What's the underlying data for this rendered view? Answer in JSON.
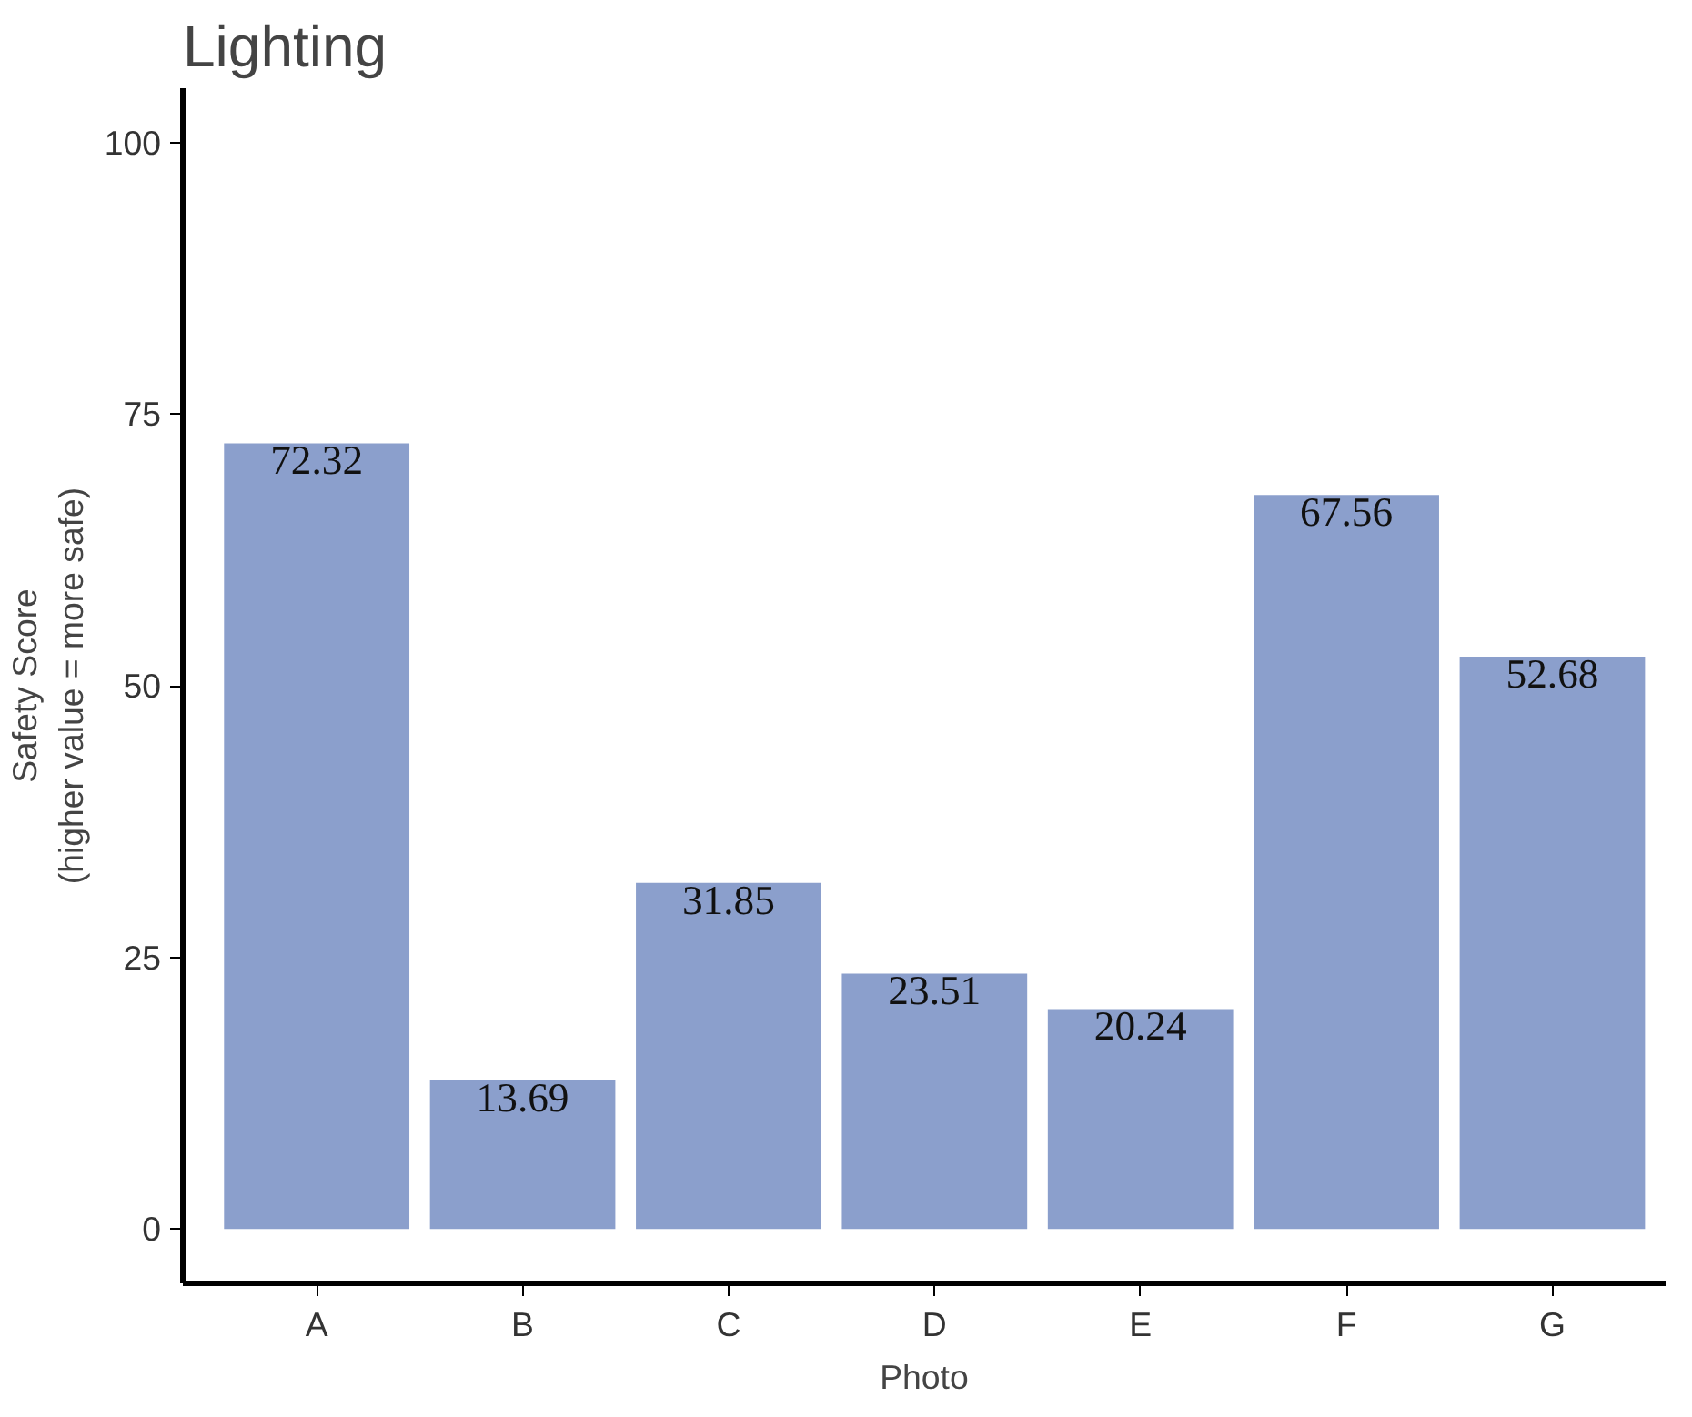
{
  "chart_data": {
    "type": "bar",
    "title": "Lighting",
    "xlabel": "Photo",
    "ylabel": "Safety Score\n(higher value = more safe)",
    "categories": [
      "A",
      "B",
      "C",
      "D",
      "E",
      "F",
      "G"
    ],
    "values": [
      72.32,
      13.69,
      31.85,
      23.51,
      20.24,
      67.56,
      52.68
    ],
    "color": "#8b9fcc",
    "ylim": [
      -5,
      105
    ],
    "yticks": [
      0,
      25,
      50,
      75,
      100
    ],
    "grid": false,
    "data_labels": true
  }
}
